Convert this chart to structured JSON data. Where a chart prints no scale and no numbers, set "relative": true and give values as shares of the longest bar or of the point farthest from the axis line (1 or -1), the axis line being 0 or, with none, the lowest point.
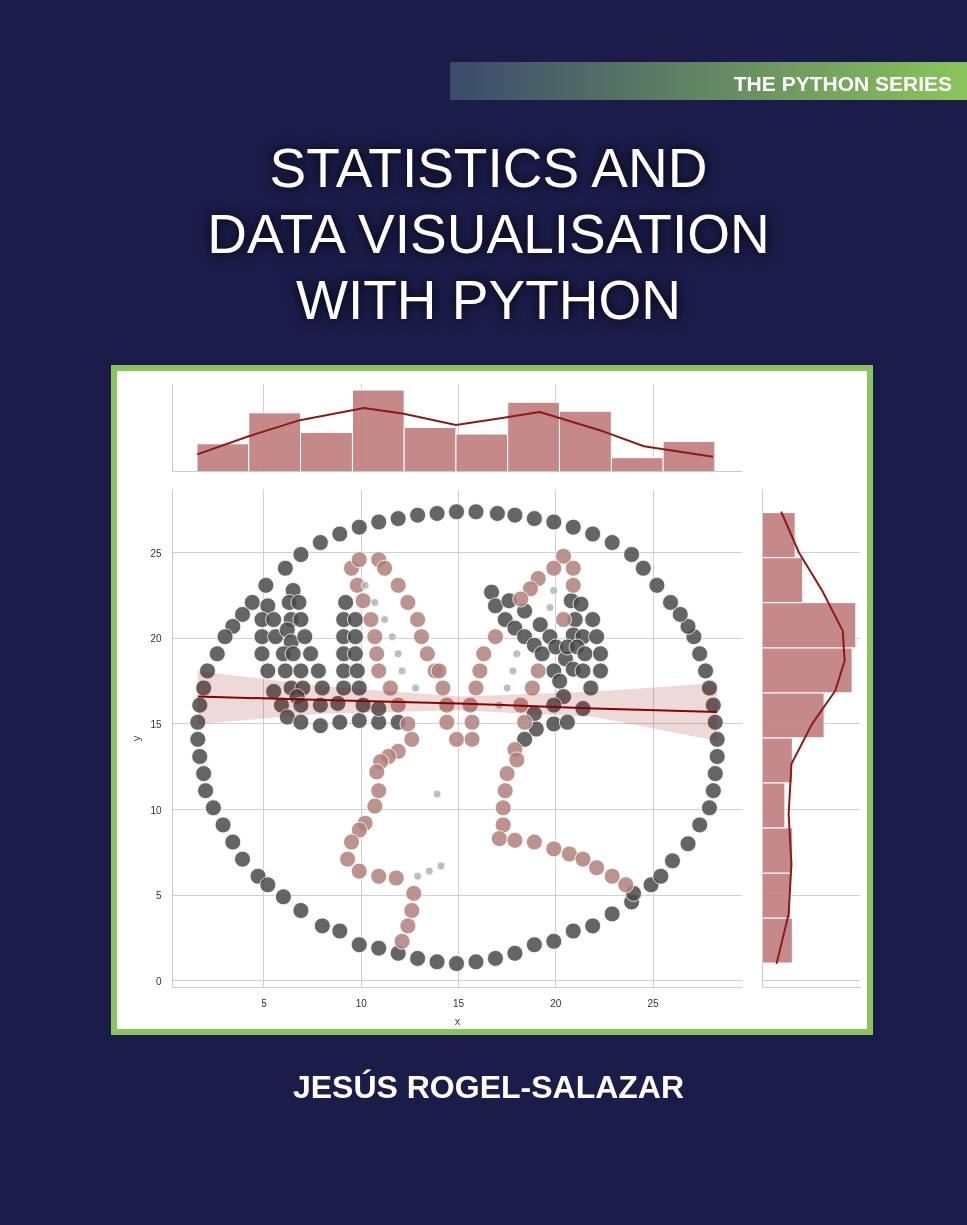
{
  "chart_data": [
    {
      "type": "histogram",
      "title": "STATISTICS AND\nDATA VISUALISATION\nWITH PYTHON",
      "annotations": [
        "THE PYTHON SERIES",
        "JESÚS ROGEL-SALAZAR"
      ],
      "relative": true,
      "xlim": [
        0.3,
        29.6
      ],
      "xticks": [
        5,
        10,
        15,
        20,
        25
      ],
      "tick_labels": false,
      "grid": "x",
      "series": [
        {
          "type": "histogram",
          "color": "#c07c7c",
          "bins": [
            1.56,
            4.22,
            6.88,
            9.55,
            12.21,
            14.87,
            17.53,
            20.19,
            22.86,
            25.52,
            28.18
          ],
          "values": [
            0.34,
            0.72,
            0.48,
            1,
            0.54,
            0.46,
            0.85,
            0.74,
            0.17,
            0.37
          ]
        },
        {
          "type": "line",
          "color": "#8b1a1a",
          "x": [
            1.57,
            4.18,
            6.85,
            10.14,
            12.19,
            14.87,
            17.33,
            19.18,
            22.47,
            24.53,
            28.08
          ],
          "values": [
            0.21,
            0.43,
            0.63,
            0.78,
            0.71,
            0.57,
            0.66,
            0.73,
            0.49,
            0.31,
            0.18
          ]
        }
      ]
    },
    {
      "type": "scatter",
      "xlabel": "x",
      "ylabel": "y",
      "xlim": [
        0.3,
        29.6
      ],
      "ylim": [
        -0.4,
        28.7
      ],
      "xticks": [
        5,
        10,
        15,
        20,
        25
      ],
      "yticks": [
        0,
        5,
        10,
        15,
        20,
        25
      ],
      "grid": true,
      "marker": "circle",
      "series": [
        {
          "color": "#4a4a4a",
          "x": [
            13.9,
            12.9,
            11.9,
            10.9,
            9.9,
            8.9,
            7.9,
            6.9,
            6.1,
            5.1,
            4.4,
            3.9,
            3.4,
            3.0,
            2.6,
            2.1,
            1.9,
            1.7,
            1.6,
            1.6,
            1.7,
            1.9,
            2.0,
            2.4,
            2.9,
            3.4,
            3.9,
            4.7,
            5.2,
            6.0,
            6.9,
            8.0,
            8.9,
            9.9,
            10.9,
            11.9,
            12.9,
            13.9,
            14.9,
            15.9,
            16.9,
            17.9,
            18.9,
            19.9,
            20.9,
            21.9,
            22.9,
            23.9,
            24.0,
            24.9,
            25.4,
            26.0,
            26.8,
            27.4,
            27.9,
            28.1,
            28.2,
            28.3,
            28.3,
            28.2,
            28.1,
            27.9,
            27.7,
            27.4,
            27.1,
            26.8,
            26.4,
            25.9,
            25.2,
            24.5,
            23.9,
            22.9,
            21.9,
            20.9,
            19.9,
            18.9,
            17.9,
            17.0,
            15.9,
            14.9,
            5.2,
            6.5,
            6.3,
            6.8,
            4.9,
            5.5,
            6.4,
            6.9,
            4.9,
            5.6,
            6.2,
            6.4,
            7.1,
            4.9,
            6.0,
            6.5,
            7.4,
            5.2,
            6.1,
            6.9,
            7.8,
            5.5,
            6.4,
            7.0,
            8.0,
            6.7,
            5.9,
            6.9,
            7.9,
            8.8,
            6.2,
            6.9,
            7.9,
            8.9,
            9.9,
            10.9,
            11.9,
            10.1,
            10.9,
            9.2,
            9.1,
            9.7,
            9.1,
            9.7,
            9.1,
            9.7,
            9.1,
            9.8,
            9.1,
            9.9,
            16.7,
            16.9,
            17.6,
            18.4,
            17.4,
            17.9,
            18.4,
            19.2,
            18.9,
            19.3,
            19.7,
            20.0,
            20.5,
            20.8,
            21.3,
            21.0,
            21.9,
            20.9,
            21.4,
            22.1,
            20.6,
            21.1,
            21.5,
            22.3,
            20.9,
            21.4,
            22.3,
            19.9,
            20.2,
            21.8,
            20.4,
            19.9,
            21.4,
            18.9,
            19.0,
            19.9,
            20.6,
            18.4
          ],
          "values": [
            27.3,
            27.2,
            27.0,
            26.8,
            26.5,
            26.1,
            25.6,
            24.9,
            24.1,
            23.1,
            22.1,
            21.4,
            20.7,
            20.1,
            19.1,
            18.1,
            17.1,
            16.1,
            15.1,
            14.1,
            13.1,
            12.1,
            11.1,
            10.1,
            9.1,
            8.1,
            7.1,
            6.1,
            5.6,
            4.9,
            4.1,
            3.2,
            2.9,
            2.1,
            1.9,
            1.6,
            1.3,
            1.1,
            1.0,
            1.1,
            1.3,
            1.6,
            2.1,
            2.3,
            2.9,
            3.2,
            3.9,
            4.6,
            5.1,
            5.6,
            6.1,
            7.0,
            8.0,
            9.1,
            10.1,
            11.1,
            12.1,
            13.1,
            14.1,
            15.1,
            16.1,
            17.1,
            18.1,
            19.1,
            20.1,
            20.7,
            21.4,
            22.1,
            23.1,
            24.1,
            24.9,
            25.6,
            26.1,
            26.5,
            26.8,
            27.0,
            27.2,
            27.3,
            27.4,
            27.4,
            21.9,
            22.8,
            22.1,
            22.1,
            21.1,
            21.1,
            21.1,
            21.1,
            20.1,
            20.1,
            20.5,
            19.8,
            20.1,
            19.1,
            19.1,
            19.1,
            19.1,
            18.1,
            18.1,
            18.1,
            18.1,
            16.9,
            17.1,
            17.1,
            17.1,
            16.6,
            16.1,
            16.1,
            16.1,
            16.2,
            15.4,
            15.1,
            14.9,
            15.1,
            15.2,
            15.1,
            15.1,
            16.1,
            15.9,
            22.1,
            21.1,
            21.1,
            20.1,
            20.1,
            19.1,
            19.1,
            18.1,
            18.1,
            17.1,
            17.1,
            22.7,
            21.9,
            22.2,
            21.6,
            21.1,
            20.6,
            20.1,
            20.8,
            19.6,
            19.1,
            20.1,
            19.5,
            18.8,
            22.2,
            22.0,
            21.1,
            21.1,
            20.2,
            20.1,
            20.1,
            19.5,
            19.5,
            19.1,
            19.1,
            18.2,
            18.1,
            18.1,
            18.1,
            17.5,
            17.1,
            16.6,
            16.1,
            15.9,
            15.6,
            14.7,
            15.0,
            15.1,
            14.1
          ]
        },
        {
          "color": "#b0807a",
          "x": [
            9.5,
            9.9,
            10.9,
            11.2,
            9.8,
            11.9,
            10.1,
            12.4,
            10.5,
            12.9,
            10.7,
            13.1,
            10.8,
            13.4,
            10.9,
            13.8,
            11.5,
            11.9,
            12.4,
            12.6,
            11.9,
            11.4,
            11.0,
            10.8,
            10.9,
            10.7,
            10.2,
            9.9,
            9.5,
            9.3,
            9.9,
            10.9,
            11.8,
            12.7,
            12.6,
            12.4,
            12.1,
            14.0,
            14.2,
            14.4,
            14.4,
            14.9,
            15.7,
            15.7,
            15.6,
            15.9,
            16.1,
            16.3,
            16.9,
            20.4,
            19.9,
            20.9,
            19.1,
            18.7,
            20.9,
            18.2,
            20.4,
            19.1,
            18.8,
            18.2,
            18.4,
            17.9,
            18.0,
            17.5,
            17.4,
            17.3,
            17.3,
            17.1,
            17.9,
            18.9,
            19.9,
            20.7,
            21.4,
            22.1,
            22.9,
            23.6
          ],
          "values": [
            24.1,
            24.6,
            24.6,
            24.1,
            23.1,
            23.1,
            22.2,
            22.1,
            21.1,
            21.1,
            20.1,
            20.1,
            19.1,
            19.1,
            18.1,
            18.1,
            17.1,
            16.1,
            15.0,
            14.1,
            13.4,
            13.1,
            12.8,
            12.2,
            11.1,
            10.2,
            9.2,
            8.8,
            8.1,
            7.1,
            6.4,
            6.1,
            6.0,
            5.1,
            4.1,
            3.2,
            2.3,
            18.1,
            17.1,
            16.1,
            15.1,
            14.1,
            14.1,
            15.1,
            16.1,
            17.1,
            18.1,
            19.1,
            20.1,
            24.8,
            24.1,
            24.1,
            23.5,
            22.9,
            23.1,
            22.3,
            21.1,
            18.1,
            17.1,
            16.1,
            15.1,
            13.5,
            12.9,
            12.1,
            11.1,
            10.1,
            9.1,
            8.3,
            8.2,
            8.1,
            7.7,
            7.4,
            7.1,
            6.6,
            6.1,
            5.6
          ]
        },
        {
          "color": "#b3b3b3",
          "x": [
            10.2,
            10.7,
            11.2,
            11.6,
            11.9,
            12.1,
            12.8,
            13.9,
            12.9,
            13.5,
            14.1,
            19.9,
            19.7,
            18.0,
            17.8,
            17.5,
            17.1
          ],
          "values": [
            23.1,
            22.1,
            21.1,
            20.1,
            19.1,
            18.1,
            17.1,
            10.9,
            6.1,
            6.4,
            6.7,
            22.8,
            21.8,
            19.1,
            18.1,
            17.1,
            16.1
          ]
        },
        {
          "type": "line",
          "marker": "none",
          "color": "#8b0000",
          "x": [
            1.6,
            8,
            15,
            22,
            28.3
          ],
          "values": [
            16.6,
            16.4,
            16.2,
            15.9,
            15.7
          ],
          "lower": [
            15.0,
            15.6,
            15.8,
            15.4,
            14.0
          ],
          "upper": [
            18.1,
            17.2,
            16.6,
            16.9,
            17.4
          ]
        }
      ]
    },
    {
      "type": "histogram",
      "orientation": "horizontal",
      "relative": true,
      "ylim": [
        -0.4,
        28.7
      ],
      "yticks": [
        0,
        5,
        10,
        15,
        20,
        25
      ],
      "tick_labels": false,
      "grid": "y",
      "series": [
        {
          "type": "histogram",
          "color": "#c07c7c",
          "bins": [
            1.03,
            3.66,
            6.29,
            8.93,
            11.56,
            14.19,
            16.82,
            19.45,
            22.09,
            24.72,
            27.35
          ],
          "values": [
            0.32,
            0.3,
            0.32,
            0.24,
            0.32,
            0.66,
            0.96,
            1,
            0.43,
            0.35
          ]
        },
        {
          "type": "line",
          "color": "#8b1a1a",
          "x": [
            27.41,
            25.02,
            22.78,
            20.44,
            18.69,
            16.94,
            14.99,
            12.66,
            9.74,
            6.82,
            3.9,
            0.98
          ],
          "values": [
            0.2,
            0.39,
            0.64,
            0.86,
            0.88,
            0.78,
            0.53,
            0.31,
            0.28,
            0.31,
            0.28,
            0.15
          ]
        }
      ]
    }
  ]
}
